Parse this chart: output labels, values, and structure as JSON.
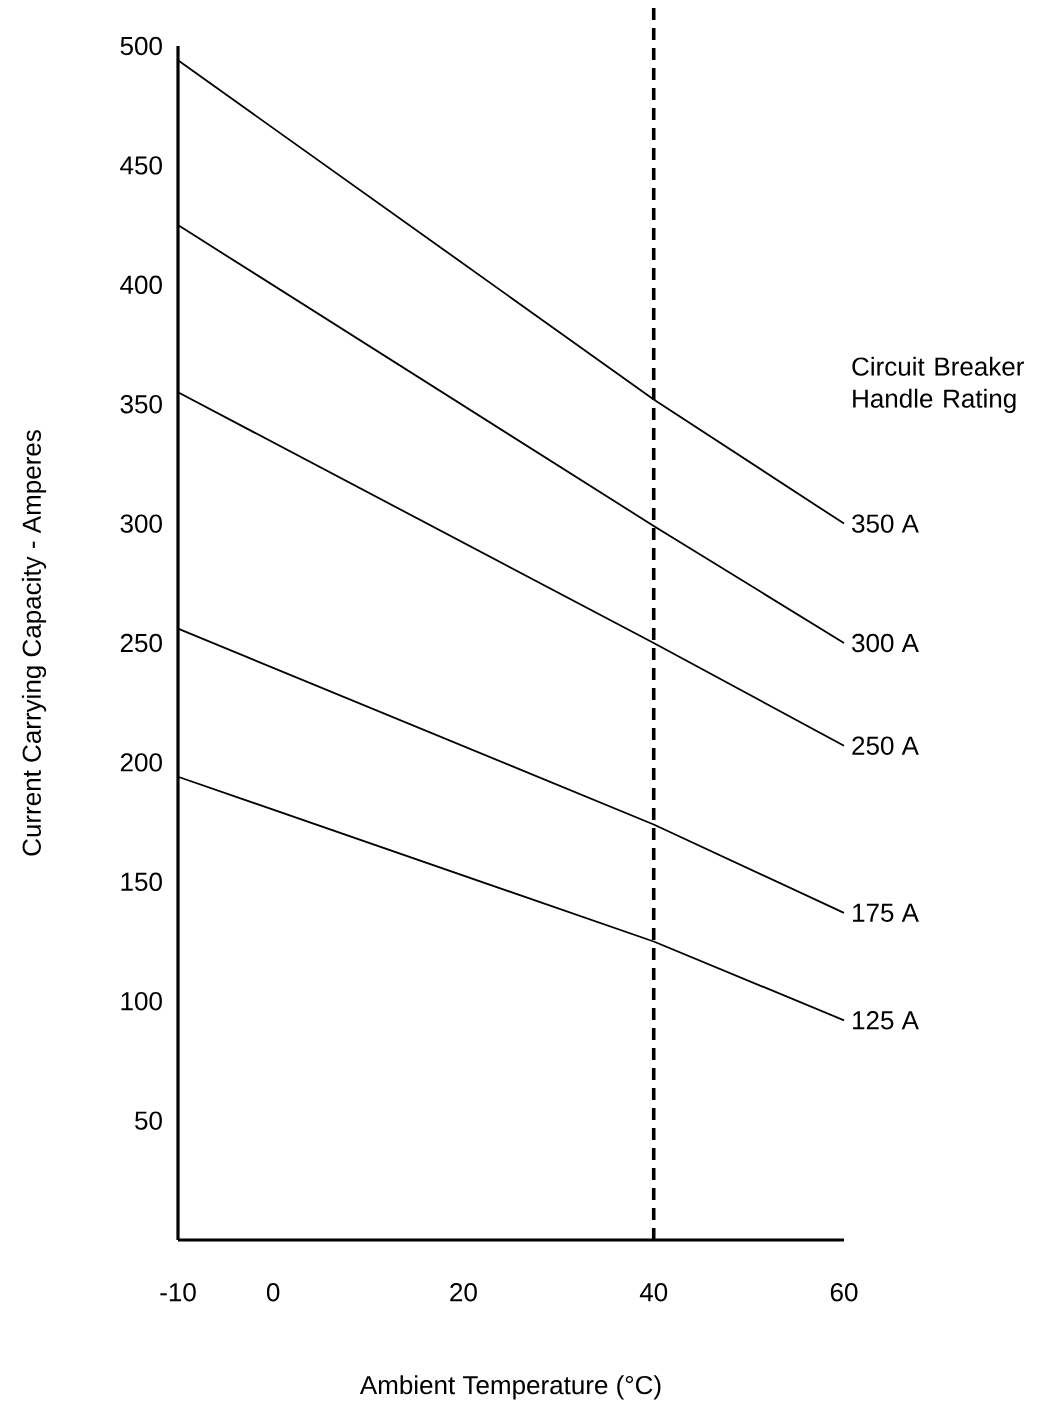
{
  "chart_data": {
    "type": "line",
    "xlabel": "Ambient Temperature (°C)",
    "ylabel": "Current Carrying Capacity - Amperes",
    "legend_title": "Circuit Breaker Handle Rating",
    "xlim": [
      -10,
      60
    ],
    "xticks": [
      -10,
      0,
      20,
      40,
      60
    ],
    "ylim": [
      0,
      500
    ],
    "yticks": [
      50,
      100,
      150,
      200,
      250,
      300,
      350,
      400,
      450,
      500
    ],
    "x": [
      -10,
      40,
      60
    ],
    "series": [
      {
        "name": "350 A",
        "color": "#000000",
        "values": [
          494,
          352,
          300
        ]
      },
      {
        "name": "300 A",
        "color": "#000000",
        "values": [
          425,
          299,
          250
        ]
      },
      {
        "name": "250 A",
        "color": "#000000",
        "values": [
          355,
          250,
          207
        ]
      },
      {
        "name": "175 A",
        "color": "#000000",
        "values": [
          256,
          174,
          137
        ]
      },
      {
        "name": "125 A",
        "color": "#000000",
        "values": [
          194,
          125,
          92
        ]
      }
    ],
    "ref_lines": [
      {
        "axis": "x",
        "value": 40,
        "color": "#000000",
        "line_style": "dashed"
      }
    ],
    "grid": false,
    "marker": "none",
    "line_style": "solid"
  }
}
